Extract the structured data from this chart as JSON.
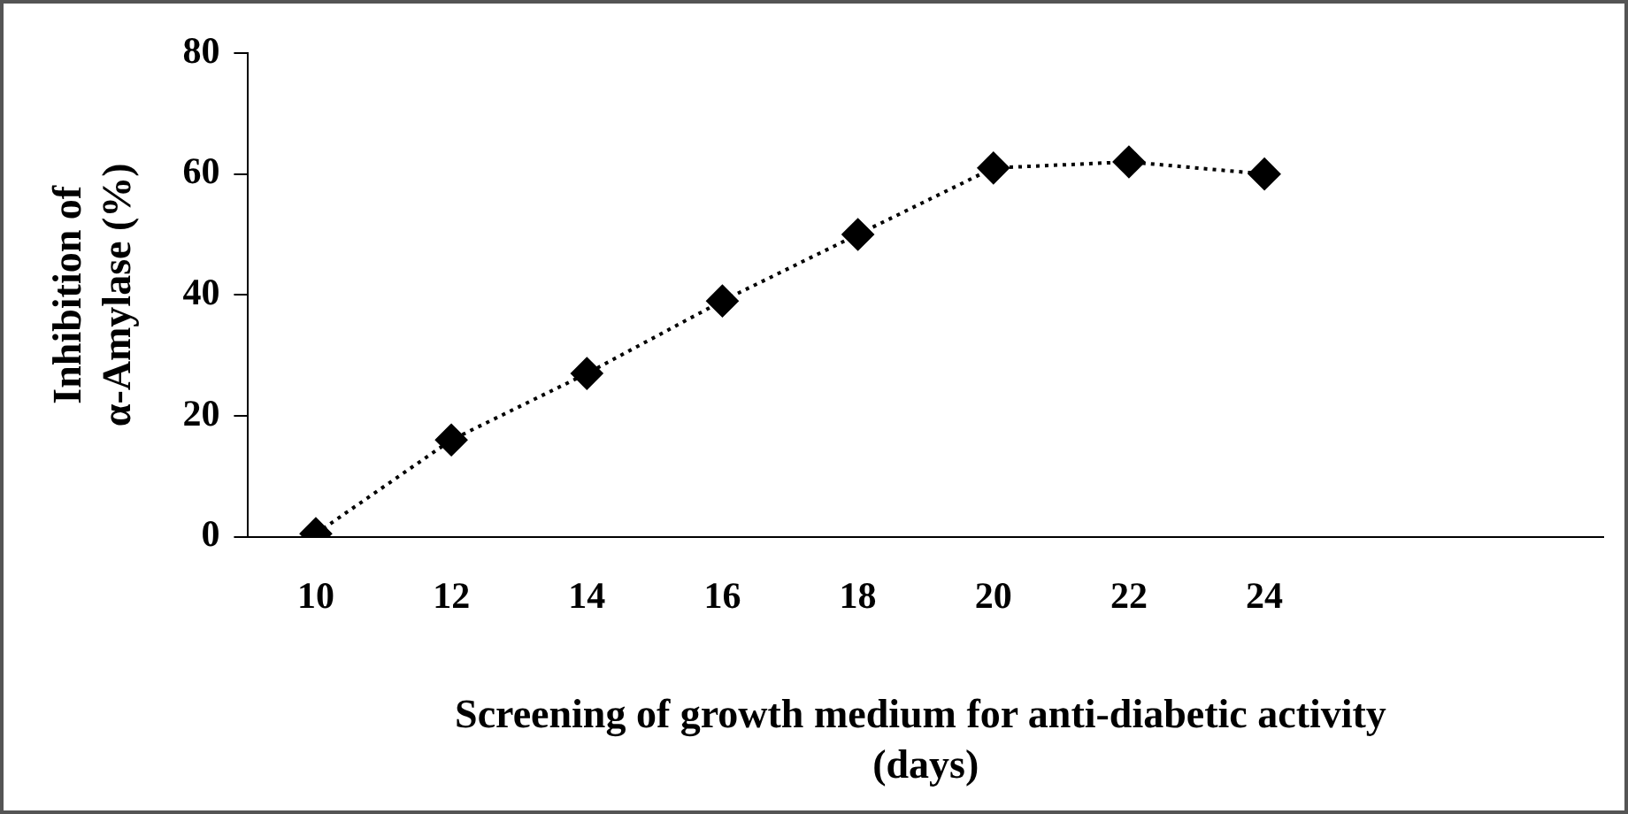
{
  "chart_data": {
    "type": "line",
    "xlabel": "Screening of growth medium for anti-diabetic activity  (days)",
    "ylabel": "Inhibition of α-Amylase (%)",
    "categories": [
      "10",
      "12",
      "14",
      "16",
      "18",
      "20",
      "22",
      "24",
      null,
      null
    ],
    "series": [
      {
        "color": "#000000",
        "values": [
          0.5,
          16,
          27,
          39,
          50,
          61,
          62,
          60,
          null,
          null
        ]
      }
    ],
    "ylim": [
      0,
      80
    ],
    "yticks": [
      0,
      20,
      40,
      60,
      80
    ],
    "grid": false,
    "legend": false,
    "marker": "diamond",
    "line_style": "dotted"
  }
}
